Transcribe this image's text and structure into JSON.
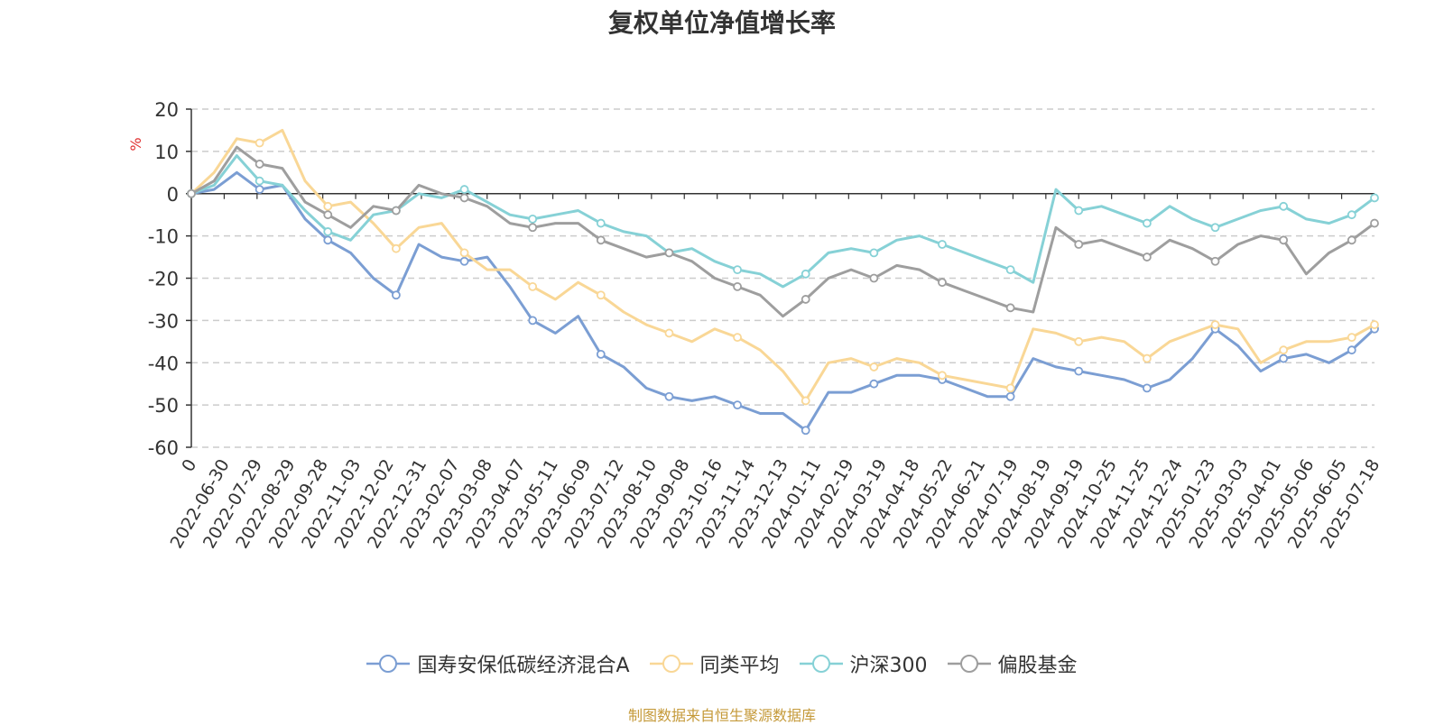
{
  "chart_data": {
    "type": "line",
    "title": "复权单位净值增长率",
    "ylabel": "%",
    "ylim": [
      -60,
      20
    ],
    "yticks": [
      20,
      10,
      0,
      -10,
      -20,
      -30,
      -40,
      -50,
      -60
    ],
    "grid": true,
    "legend_position": "bottom",
    "x_tick_labels": [
      "0",
      "2022-06-30",
      "2022-07-29",
      "2022-08-29",
      "2022-09-28",
      "2022-11-03",
      "2022-12-02",
      "2022-12-31",
      "2023-02-07",
      "2023-03-08",
      "2023-04-07",
      "2023-05-11",
      "2023-06-09",
      "2023-07-12",
      "2023-08-10",
      "2023-09-08",
      "2023-10-16",
      "2023-11-14",
      "2023-12-13",
      "2024-01-11",
      "2024-02-19",
      "2024-03-19",
      "2024-04-18",
      "2024-05-22",
      "2024-06-21",
      "2024-07-19",
      "2024-08-19",
      "2024-09-19",
      "2024-10-25",
      "2024-11-25",
      "2024-12-24",
      "2025-01-23",
      "2025-03-03",
      "2025-04-01",
      "2025-05-06",
      "2025-06-05",
      "2025-07-18"
    ],
    "series": [
      {
        "name": "国寿安保低碳经济混合A",
        "color": "#7b9ed3",
        "values": [
          0,
          1,
          5,
          1,
          2,
          -6,
          -11,
          -14,
          -20,
          -24,
          -12,
          -15,
          -16,
          -15,
          -22,
          -30,
          -33,
          -29,
          -38,
          -41,
          -46,
          -48,
          -49,
          -48,
          -50,
          -52,
          -52,
          -56,
          -47,
          -47,
          -45,
          -43,
          -43,
          -44,
          -46,
          -48,
          -48,
          -39,
          -41,
          -42,
          -43,
          -44,
          -46,
          -44,
          -39,
          -32,
          -36,
          -42,
          -39,
          -38,
          -40,
          -37,
          -32
        ]
      },
      {
        "name": "同类平均",
        "color": "#f9d796",
        "values": [
          0,
          5,
          13,
          12,
          15,
          3,
          -3,
          -2,
          -7,
          -13,
          -8,
          -7,
          -14,
          -18,
          -18,
          -22,
          -25,
          -21,
          -24,
          -28,
          -31,
          -33,
          -35,
          -32,
          -34,
          -37,
          -42,
          -49,
          -40,
          -39,
          -41,
          -39,
          -40,
          -43,
          -44,
          -45,
          -46,
          -32,
          -33,
          -35,
          -34,
          -35,
          -39,
          -35,
          -33,
          -31,
          -32,
          -40,
          -37,
          -35,
          -35,
          -34,
          -31
        ]
      },
      {
        "name": "沪深300",
        "color": "#86d1d6",
        "values": [
          0,
          2,
          9,
          3,
          2,
          -4,
          -9,
          -11,
          -5,
          -4,
          0,
          -1,
          1,
          -2,
          -5,
          -6,
          -5,
          -4,
          -7,
          -9,
          -10,
          -14,
          -13,
          -16,
          -18,
          -19,
          -22,
          -19,
          -14,
          -13,
          -14,
          -11,
          -10,
          -12,
          -14,
          -16,
          -18,
          -21,
          1,
          -4,
          -3,
          -5,
          -7,
          -3,
          -6,
          -8,
          -6,
          -4,
          -3,
          -6,
          -7,
          -5,
          -1
        ]
      },
      {
        "name": "偏股基金",
        "color": "#9e9e9e",
        "values": [
          0,
          3,
          11,
          7,
          6,
          -2,
          -5,
          -8,
          -3,
          -4,
          2,
          0,
          -1,
          -3,
          -7,
          -8,
          -7,
          -7,
          -11,
          -13,
          -15,
          -14,
          -16,
          -20,
          -22,
          -24,
          -29,
          -25,
          -20,
          -18,
          -20,
          -17,
          -18,
          -21,
          -23,
          -25,
          -27,
          -28,
          -8,
          -12,
          -11,
          -13,
          -15,
          -11,
          -13,
          -16,
          -12,
          -10,
          -11,
          -19,
          -14,
          -11,
          -7
        ]
      }
    ],
    "source_note": "制图数据来自恒生聚源数据库"
  }
}
